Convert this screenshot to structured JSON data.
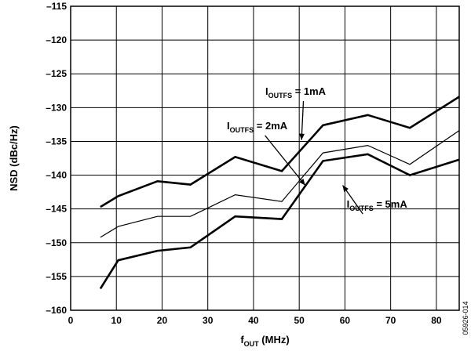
{
  "chart_data": {
    "type": "line",
    "xlabel": {
      "main": "f",
      "sub": "OUT",
      "rest": " (MHz)"
    },
    "ylabel": "NSD (dBc/Hz)",
    "xlim": [
      0,
      85
    ],
    "ylim": [
      -160,
      -115
    ],
    "xticks": [
      0,
      10,
      20,
      30,
      40,
      50,
      60,
      70,
      80
    ],
    "yticks": [
      -115,
      -120,
      -125,
      -130,
      -135,
      -140,
      -145,
      -150,
      -155,
      -160
    ],
    "xtick_labels": [
      "0",
      "10",
      "20",
      "30",
      "40",
      "50",
      "60",
      "70",
      "80"
    ],
    "ytick_labels": [
      "–115",
      "–120",
      "–125",
      "–130",
      "–135",
      "–140",
      "–145",
      "–150",
      "–155",
      "–160"
    ],
    "grid": true,
    "series": [
      {
        "label": {
          "main": "I",
          "sub": "OUTFS",
          "rest": " = 1mA"
        },
        "x": [
          6.5,
          10.4,
          19,
          26.2,
          36,
          46.2,
          55.2,
          65,
          74.2,
          85
        ],
        "y": [
          -144.7,
          -143.1,
          -140.9,
          -141.4,
          -137.3,
          -139.4,
          -132.6,
          -131.1,
          -133.0,
          -128.4
        ],
        "stroke": "#000000",
        "width": 2.6
      },
      {
        "label": {
          "main": "I",
          "sub": "OUTFS",
          "rest": " = 2mA"
        },
        "x": [
          6.5,
          10.4,
          19,
          26.2,
          36,
          46.2,
          55.2,
          65,
          74.2,
          85
        ],
        "y": [
          -149.2,
          -147.6,
          -146.1,
          -146.1,
          -142.9,
          -143.9,
          -136.7,
          -135.6,
          -138.4,
          -133.4
        ],
        "stroke": "#000000",
        "width": 1.2
      },
      {
        "label": {
          "main": "I",
          "sub": "OUTFS",
          "rest": " = 5mA"
        },
        "x": [
          6.5,
          10.4,
          19,
          26.2,
          36,
          46.2,
          55.2,
          65,
          74.2,
          85
        ],
        "y": [
          -156.8,
          -152.6,
          -151.2,
          -150.7,
          -146.1,
          -146.5,
          -137.9,
          -136.9,
          -140.0,
          -137.7
        ],
        "stroke": "#000000",
        "width": 2.6
      }
    ],
    "annotations": [
      {
        "series": 0,
        "text": {
          "main": "I",
          "sub": "OUTFS",
          "rest": " = 1mA"
        },
        "at": [
          49.2,
          -128.1
        ],
        "arrow_to": [
          50.5,
          -134.8
        ]
      },
      {
        "series": 1,
        "text": {
          "main": "I",
          "sub": "OUTFS",
          "rest": " = 2mA"
        },
        "at": [
          40.8,
          -133.2
        ],
        "arrow_to": [
          51.3,
          -141.5
        ]
      },
      {
        "series": 2,
        "text": {
          "main": "I",
          "sub": "OUTFS",
          "rest": " = 5mA"
        },
        "at": [
          67.0,
          -144.8
        ],
        "arrow_to": [
          59.5,
          -141.5
        ]
      }
    ],
    "figure_code": "05926-014"
  }
}
